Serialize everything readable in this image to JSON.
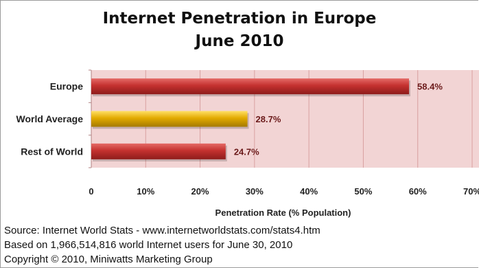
{
  "chart_data": {
    "type": "bar",
    "orientation": "horizontal",
    "title": "Internet Penetration in Europe",
    "subtitle": "June 2010",
    "categories": [
      "Europe",
      "World Average",
      "Rest of World"
    ],
    "values": [
      58.4,
      28.7,
      24.7
    ],
    "data_labels": [
      "58.4%",
      "28.7%",
      "24.7%"
    ],
    "bar_colors": [
      "#c0302e",
      "#e0a800",
      "#c0302e"
    ],
    "xlabel": "Penetration Rate (% Population)",
    "xlim": [
      0,
      70
    ],
    "x_ticks": [
      "0",
      "10%",
      "20%",
      "30%",
      "40%",
      "50%",
      "60%",
      "70%"
    ],
    "grid": true,
    "plot_background": "#f2d4d4",
    "gridline_color": "#d9a0a0"
  },
  "footer": {
    "line1": "Source: Internet World Stats  -  www.internetworldstats.com/stats4.htm",
    "line2": "Based on 1,966,514,816 world Internet users for June 30,  2010",
    "line3": "Copyright © 2010, Miniwatts Marketing Group"
  }
}
